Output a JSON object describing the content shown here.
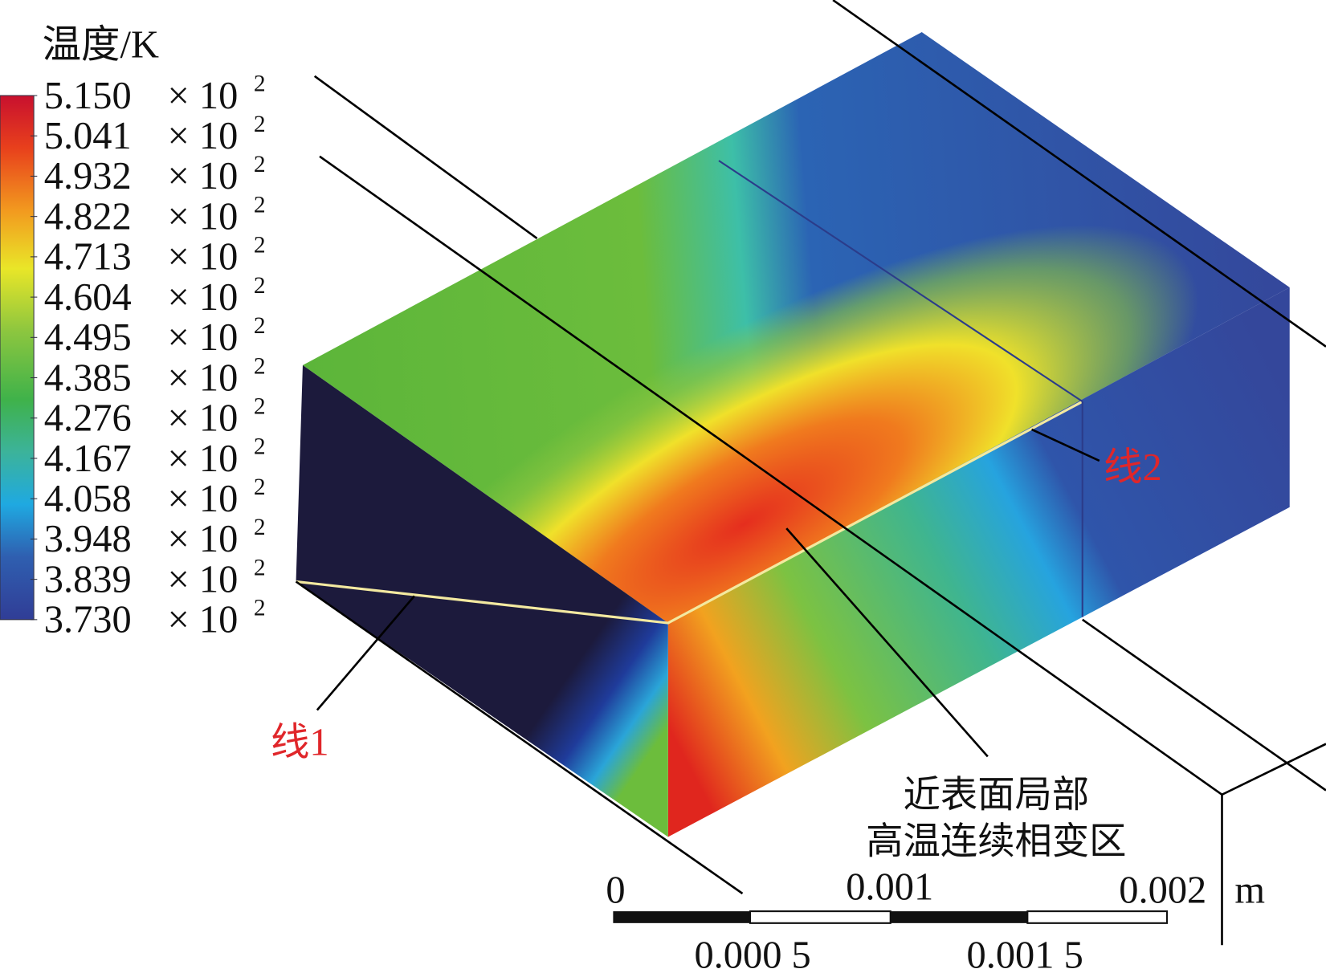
{
  "legend": {
    "title": "温度/K",
    "labels": [
      "5.150",
      "5.041",
      "4.932",
      "4.822",
      "4.713",
      "4.604",
      "4.495",
      "4.385",
      "4.276",
      "4.167",
      "4.058",
      "3.948",
      "3.839",
      "3.730"
    ],
    "factor": "× 10",
    "exponent": "2"
  },
  "annotations": {
    "line1": "线1",
    "line2": "线2",
    "region_line1": "近表面局部",
    "region_line2": "高温连续相变区"
  },
  "scale_bar": {
    "top_labels": [
      "0",
      "0.001",
      "0.002"
    ],
    "bottom_labels": [
      "0.000 5",
      "0.001 5"
    ],
    "unit": "m"
  }
}
